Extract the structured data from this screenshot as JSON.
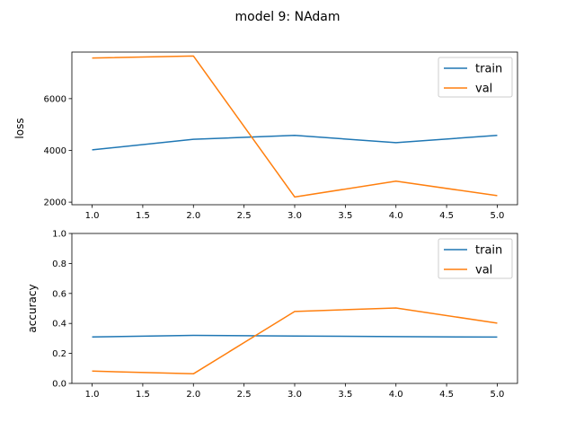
{
  "figure": {
    "title": "model 9: NAdam"
  },
  "chart_data": [
    {
      "type": "line",
      "ylabel": "loss",
      "xlabel": "",
      "x": [
        1,
        2,
        3,
        4,
        5
      ],
      "xlim": [
        0.8,
        5.2
      ],
      "ylim": [
        1900,
        7800
      ],
      "xticks": [
        1.0,
        1.5,
        2.0,
        2.5,
        3.0,
        3.5,
        4.0,
        4.5,
        5.0
      ],
      "xtick_labels": [
        "1.0",
        "1.5",
        "2.0",
        "2.5",
        "3.0",
        "3.5",
        "4.0",
        "4.5",
        "5.0"
      ],
      "yticks": [
        2000,
        4000,
        6000
      ],
      "ytick_labels": [
        "2000",
        "4000",
        "6000"
      ],
      "grid": false,
      "legend_position": "top-right",
      "series": [
        {
          "name": "train",
          "color": "#1f77b4",
          "values": [
            4020,
            4430,
            4580,
            4300,
            4580
          ]
        },
        {
          "name": "val",
          "color": "#ff7f0e",
          "values": [
            7570,
            7650,
            2200,
            2810,
            2250
          ]
        }
      ]
    },
    {
      "type": "line",
      "ylabel": "accuracy",
      "xlabel": "",
      "x": [
        1,
        2,
        3,
        4,
        5
      ],
      "xlim": [
        0.8,
        5.2
      ],
      "ylim": [
        0.0,
        1.0
      ],
      "xticks": [
        1.0,
        1.5,
        2.0,
        2.5,
        3.0,
        3.5,
        4.0,
        4.5,
        5.0
      ],
      "xtick_labels": [
        "1.0",
        "1.5",
        "2.0",
        "2.5",
        "3.0",
        "3.5",
        "4.0",
        "4.5",
        "5.0"
      ],
      "yticks": [
        0.0,
        0.2,
        0.4,
        0.6,
        0.8,
        1.0
      ],
      "ytick_labels": [
        "0.0",
        "0.2",
        "0.4",
        "0.6",
        "0.8",
        "1.0"
      ],
      "grid": false,
      "legend_position": "top-right",
      "series": [
        {
          "name": "train",
          "color": "#1f77b4",
          "values": [
            0.31,
            0.32,
            0.316,
            0.312,
            0.309
          ]
        },
        {
          "name": "val",
          "color": "#ff7f0e",
          "values": [
            0.082,
            0.064,
            0.48,
            0.503,
            0.402
          ]
        }
      ]
    }
  ]
}
